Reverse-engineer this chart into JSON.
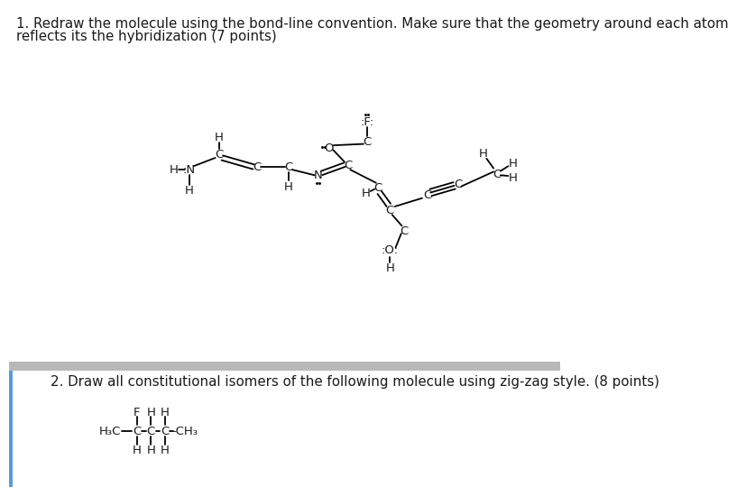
{
  "title1": "1. Redraw the molecule using the bond-line convention. Make sure that the geometry around each atom",
  "title1b": "reflects its the hybridization (7 points)",
  "title2": "2. Draw all constitutional isomers of the following molecule using zig-zag style. (8 points)",
  "bg_color": "#ffffff",
  "divider_color": "#b8b8b8",
  "text_color": "#1a1a1a",
  "fs": 9.5,
  "fs_title": 10.8,
  "fs2": 9.0
}
